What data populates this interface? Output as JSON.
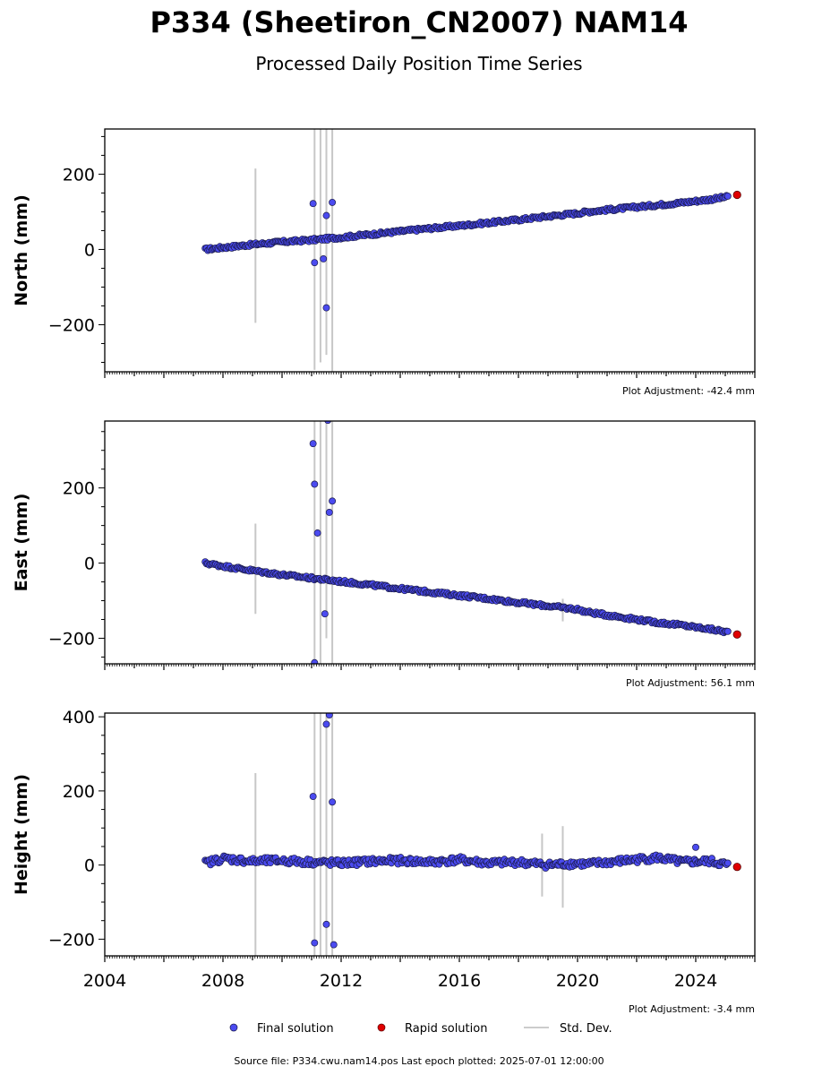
{
  "title": "P334 (Sheetiron_CN2007) NAM14",
  "subtitle": "Processed Daily Position Time Series",
  "legend": {
    "final": "Final solution",
    "rapid": "Rapid solution",
    "stddev": "Std. Dev."
  },
  "footer": "Source file: P334.cwu.nam14.pos  Last epoch plotted: 2025-07-01 12:00:00",
  "colors": {
    "final": "#4b4bf0",
    "final_edge": "#1a1a4a",
    "rapid": "#e00000",
    "stddev": "#aaaaaa"
  },
  "chart_data": [
    {
      "type": "scatter",
      "ylabel": "North (mm)",
      "adjustment": "Plot Adjustment: -42.4 mm",
      "xlim": [
        2004,
        2026
      ],
      "ylim": [
        -325,
        320
      ],
      "yticks": [
        -200,
        0,
        200
      ],
      "series": [
        {
          "name": "Final solution",
          "points": [
            [
              2007.4,
              0
            ],
            [
              2008.0,
              5
            ],
            [
              2009.0,
              13
            ],
            [
              2010.0,
              20
            ],
            [
              2011.0,
              25
            ],
            [
              2012.0,
              32
            ],
            [
              2013.0,
              40
            ],
            [
              2014.0,
              48
            ],
            [
              2015.0,
              56
            ],
            [
              2016.0,
              63
            ],
            [
              2017.0,
              71
            ],
            [
              2018.0,
              79
            ],
            [
              2019.0,
              88
            ],
            [
              2020.0,
              96
            ],
            [
              2020.3,
              100
            ],
            [
              2022.7,
              118
            ],
            [
              2023.5,
              124
            ],
            [
              2024.5,
              133
            ],
            [
              2025.1,
              140
            ]
          ]
        },
        {
          "name": "Rapid solution",
          "points": [
            [
              2025.4,
              145
            ]
          ]
        }
      ],
      "outliers": [
        [
          2011.05,
          122
        ],
        [
          2011.5,
          90
        ],
        [
          2011.7,
          125
        ],
        [
          2011.5,
          -155
        ],
        [
          2011.1,
          -35
        ],
        [
          2011.4,
          -25
        ]
      ],
      "stddev_bars": [
        [
          2009.1,
          215,
          -195
        ],
        [
          2011.1,
          330,
          -320
        ],
        [
          2011.3,
          330,
          -300
        ],
        [
          2011.5,
          330,
          -280
        ],
        [
          2011.7,
          330,
          -330
        ]
      ]
    },
    {
      "type": "scatter",
      "ylabel": "East (mm)",
      "adjustment": "Plot Adjustment: 56.1 mm",
      "xlim": [
        2004,
        2026
      ],
      "ylim": [
        -268,
        378
      ],
      "yticks": [
        -200,
        0,
        200
      ],
      "series": [
        {
          "name": "Final solution",
          "points": [
            [
              2007.4,
              0
            ],
            [
              2008.0,
              -8
            ],
            [
              2009.0,
              -20
            ],
            [
              2010.0,
              -31
            ],
            [
              2011.0,
              -40
            ],
            [
              2012.0,
              -49
            ],
            [
              2013.0,
              -58
            ],
            [
              2014.0,
              -68
            ],
            [
              2015.0,
              -77
            ],
            [
              2016.0,
              -86
            ],
            [
              2017.0,
              -95
            ],
            [
              2018.0,
              -105
            ],
            [
              2019.0,
              -114
            ],
            [
              2020.0,
              -123
            ],
            [
              2020.3,
              -130
            ],
            [
              2022.7,
              -158
            ],
            [
              2023.5,
              -165
            ],
            [
              2024.5,
              -176
            ],
            [
              2025.1,
              -184
            ]
          ]
        },
        {
          "name": "Rapid solution",
          "points": [
            [
              2025.4,
              -190
            ]
          ]
        }
      ],
      "outliers": [
        [
          2011.05,
          318
        ],
        [
          2011.1,
          210
        ],
        [
          2011.55,
          380
        ],
        [
          2011.7,
          165
        ],
        [
          2011.6,
          135
        ],
        [
          2011.45,
          -135
        ],
        [
          2011.1,
          -265
        ],
        [
          2011.2,
          80
        ]
      ],
      "stddev_bars": [
        [
          2009.1,
          105,
          -135
        ],
        [
          2011.1,
          378,
          -268
        ],
        [
          2011.3,
          378,
          -268
        ],
        [
          2011.5,
          378,
          -200
        ],
        [
          2011.7,
          378,
          -268
        ],
        [
          2019.5,
          -95,
          -155
        ]
      ]
    },
    {
      "type": "scatter",
      "ylabel": "Height (mm)",
      "adjustment": "Plot Adjustment: -3.4 mm",
      "xlim": [
        2004,
        2026
      ],
      "ylim": [
        -245,
        410
      ],
      "yticks": [
        -200,
        0,
        200,
        400
      ],
      "xticks": [
        2004,
        2008,
        2012,
        2016,
        2020,
        2024
      ],
      "series": [
        {
          "name": "Final solution",
          "points": [
            [
              2007.4,
              5
            ],
            [
              2008.0,
              18
            ],
            [
              2009.0,
              10
            ],
            [
              2010.0,
              12
            ],
            [
              2011.0,
              8
            ],
            [
              2012.0,
              5
            ],
            [
              2013.0,
              10
            ],
            [
              2014.0,
              12
            ],
            [
              2015.0,
              8
            ],
            [
              2016.0,
              14
            ],
            [
              2017.0,
              5
            ],
            [
              2018.0,
              8
            ],
            [
              2019.0,
              0
            ],
            [
              2020.0,
              5
            ],
            [
              2020.3,
              2
            ],
            [
              2022.7,
              20
            ],
            [
              2023.5,
              8
            ],
            [
              2024.5,
              10
            ],
            [
              2025.1,
              0
            ]
          ]
        },
        {
          "name": "Rapid solution",
          "points": [
            [
              2025.4,
              -5
            ]
          ]
        }
      ],
      "outliers": [
        [
          2011.05,
          185
        ],
        [
          2011.6,
          405
        ],
        [
          2011.5,
          380
        ],
        [
          2011.7,
          170
        ],
        [
          2011.1,
          -210
        ],
        [
          2011.75,
          -215
        ],
        [
          2011.5,
          -160
        ],
        [
          2024.0,
          48
        ]
      ],
      "stddev_bars": [
        [
          2009.1,
          248,
          -245
        ],
        [
          2011.1,
          410,
          -245
        ],
        [
          2011.3,
          410,
          -245
        ],
        [
          2011.5,
          410,
          -245
        ],
        [
          2011.7,
          410,
          -245
        ],
        [
          2018.8,
          85,
          -85
        ],
        [
          2019.5,
          105,
          -115
        ]
      ]
    }
  ]
}
